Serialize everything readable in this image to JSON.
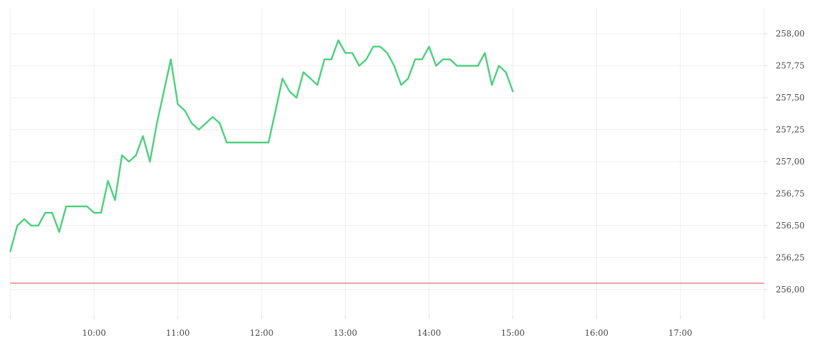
{
  "chart_data": {
    "type": "line",
    "title": "",
    "xlabel": "",
    "ylabel": "",
    "x_range_minutes": [
      "09:00",
      "18:00"
    ],
    "ylim": [
      255.8,
      258.2
    ],
    "y_ticks": [
      256.0,
      256.25,
      256.5,
      256.75,
      257.0,
      257.25,
      257.5,
      257.75,
      258.0
    ],
    "y_tick_labels": [
      "256,00",
      "256,25",
      "256,50",
      "256,75",
      "257,00",
      "257,25",
      "257,50",
      "257,75",
      "258,00"
    ],
    "x_ticks": [
      "10:00",
      "11:00",
      "12:00",
      "13:00",
      "14:00",
      "15:00",
      "16:00",
      "17:00"
    ],
    "x_tick_labels": [
      "10:00",
      "11:00",
      "12:00",
      "13:00",
      "14:00",
      "15:00",
      "16:00",
      "17:00"
    ],
    "grid": true,
    "series": [
      {
        "color": "#4cd07d",
        "points": [
          [
            "09:00",
            256.3
          ],
          [
            "09:05",
            256.5
          ],
          [
            "09:10",
            256.55
          ],
          [
            "09:15",
            256.5
          ],
          [
            "09:20",
            256.5
          ],
          [
            "09:25",
            256.6
          ],
          [
            "09:30",
            256.6
          ],
          [
            "09:35",
            256.45
          ],
          [
            "09:40",
            256.65
          ],
          [
            "09:45",
            256.65
          ],
          [
            "09:50",
            256.65
          ],
          [
            "09:55",
            256.65
          ],
          [
            "10:00",
            256.6
          ],
          [
            "10:05",
            256.6
          ],
          [
            "10:10",
            256.85
          ],
          [
            "10:15",
            256.7
          ],
          [
            "10:20",
            257.05
          ],
          [
            "10:25",
            257.0
          ],
          [
            "10:30",
            257.05
          ],
          [
            "10:35",
            257.2
          ],
          [
            "10:40",
            257.0
          ],
          [
            "10:45",
            257.3
          ],
          [
            "10:50",
            257.55
          ],
          [
            "10:55",
            257.8
          ],
          [
            "11:00",
            257.45
          ],
          [
            "11:05",
            257.4
          ],
          [
            "11:10",
            257.3
          ],
          [
            "11:15",
            257.25
          ],
          [
            "11:20",
            257.3
          ],
          [
            "11:25",
            257.35
          ],
          [
            "11:30",
            257.3
          ],
          [
            "11:35",
            257.15
          ],
          [
            "11:40",
            257.15
          ],
          [
            "11:45",
            257.15
          ],
          [
            "11:50",
            257.15
          ],
          [
            "11:55",
            257.15
          ],
          [
            "12:00",
            257.15
          ],
          [
            "12:05",
            257.15
          ],
          [
            "12:10",
            257.4
          ],
          [
            "12:15",
            257.65
          ],
          [
            "12:20",
            257.55
          ],
          [
            "12:25",
            257.5
          ],
          [
            "12:30",
            257.7
          ],
          [
            "12:35",
            257.65
          ],
          [
            "12:40",
            257.6
          ],
          [
            "12:45",
            257.8
          ],
          [
            "12:50",
            257.8
          ],
          [
            "12:55",
            257.95
          ],
          [
            "13:00",
            257.85
          ],
          [
            "13:05",
            257.85
          ],
          [
            "13:10",
            257.75
          ],
          [
            "13:15",
            257.8
          ],
          [
            "13:20",
            257.9
          ],
          [
            "13:25",
            257.9
          ],
          [
            "13:30",
            257.85
          ],
          [
            "13:35",
            257.75
          ],
          [
            "13:40",
            257.6
          ],
          [
            "13:45",
            257.65
          ],
          [
            "13:50",
            257.8
          ],
          [
            "13:55",
            257.8
          ],
          [
            "14:00",
            257.9
          ],
          [
            "14:05",
            257.75
          ],
          [
            "14:10",
            257.8
          ],
          [
            "14:15",
            257.8
          ],
          [
            "14:20",
            257.75
          ],
          [
            "14:25",
            257.75
          ],
          [
            "14:30",
            257.75
          ],
          [
            "14:35",
            257.75
          ],
          [
            "14:40",
            257.85
          ],
          [
            "14:45",
            257.6
          ],
          [
            "14:50",
            257.75
          ],
          [
            "14:55",
            257.7
          ],
          [
            "15:00",
            257.55
          ]
        ]
      }
    ],
    "reference_line": {
      "value": 256.05,
      "color": "#e05050"
    },
    "colors": {
      "grid": "#eeeeee",
      "axis": "#dddddd",
      "text": "#444444"
    }
  }
}
